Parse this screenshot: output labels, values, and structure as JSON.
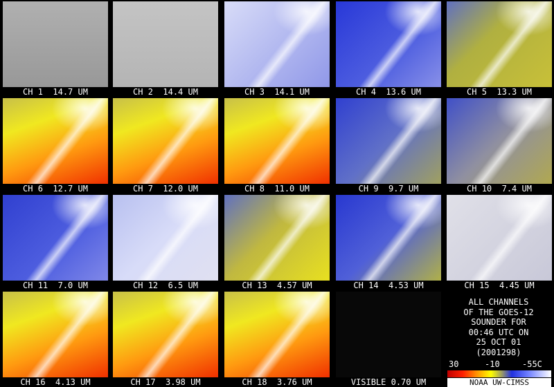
{
  "panels": [
    "CH 1  14.7 UM",
    "CH 2  14.4 UM",
    "CH 3  14.1 UM",
    "CH 4  13.6 UM",
    "CH 5  13.3 UM",
    "CH 6  12.7 UM",
    "CH 7  12.0 UM",
    "CH 8  11.0 UM",
    "CH 9  9.7 UM",
    "CH 10  7.4 UM",
    "CH 11  7.0 UM",
    "CH 12  6.5 UM",
    "CH 13  4.57 UM",
    "CH 14  4.53 UM",
    "CH 15  4.45 UM",
    "CH 16  4.13 UM",
    "CH 17  3.98 UM",
    "CH 18  3.76 UM",
    "VISIBLE 0.70 UM"
  ],
  "info": [
    "ALL CHANNELS",
    "OF THE GOES-12",
    "SOUNDER FOR",
    "00:46 UTC ON",
    "25 OCT 01",
    "(2001298)"
  ],
  "colorbar": {
    "labels": [
      "30",
      "-10",
      "-55C"
    ]
  },
  "credit": "NOAA UW-CIMSS"
}
